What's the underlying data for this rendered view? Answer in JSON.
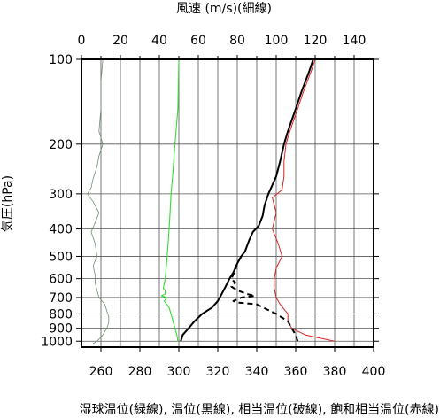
{
  "chart_data": {
    "type": "line",
    "top_axis_title": "風速 (m/s)(細線)",
    "left_axis_title": "気圧(hPa)",
    "bottom_axis_title": "湿球温位(緑線), 温位(黒線), 相当温位(破線), 飽和相当温位(赤線)",
    "wind_axis": {
      "range": [
        0,
        150
      ],
      "ticks": [
        0,
        20,
        40,
        60,
        80,
        100,
        120,
        140
      ]
    },
    "temp_axis": {
      "range": [
        250,
        400
      ],
      "ticks": [
        260,
        280,
        300,
        320,
        340,
        360,
        380,
        400
      ]
    },
    "pressure_axis": {
      "range": [
        100,
        1050
      ],
      "scale": "log",
      "reversed": true,
      "ticks": [
        100,
        200,
        300,
        400,
        500,
        600,
        700,
        800,
        900,
        1000
      ]
    },
    "grid": true,
    "colors": {
      "wind": "#6f8f6f",
      "wet_bulb": "#33dd33",
      "theta": "#000000",
      "theta_e": "#000000",
      "theta_es": "#dd2222"
    },
    "series": [
      {
        "key": "wind",
        "axis": "wind",
        "data": [
          [
            11,
            100
          ],
          [
            10,
            120
          ],
          [
            10,
            150
          ],
          [
            9,
            180
          ],
          [
            11,
            200
          ],
          [
            9,
            220
          ],
          [
            8,
            240
          ],
          [
            6,
            265
          ],
          [
            5,
            285
          ],
          [
            3,
            300
          ],
          [
            6,
            320
          ],
          [
            9,
            350
          ],
          [
            7,
            380
          ],
          [
            5,
            410
          ],
          [
            7,
            450
          ],
          [
            8,
            500
          ],
          [
            6,
            540
          ],
          [
            7,
            580
          ],
          [
            7,
            620
          ],
          [
            8,
            660
          ],
          [
            9,
            700
          ],
          [
            12,
            740
          ],
          [
            13,
            780
          ],
          [
            14,
            820
          ],
          [
            14,
            860
          ],
          [
            13,
            900
          ],
          [
            11,
            950
          ],
          [
            8,
            1000
          ],
          [
            6,
            1020
          ]
        ]
      },
      {
        "key": "wet_bulb",
        "axis": "temp",
        "data": [
          [
            300,
            100
          ],
          [
            299.5,
            150
          ],
          [
            298,
            200
          ],
          [
            297,
            250
          ],
          [
            296,
            300
          ],
          [
            295.5,
            350
          ],
          [
            295,
            400
          ],
          [
            294.5,
            450
          ],
          [
            294,
            500
          ],
          [
            293.5,
            550
          ],
          [
            293,
            600
          ],
          [
            292,
            650
          ],
          [
            293,
            660
          ],
          [
            293,
            680
          ],
          [
            291,
            690
          ],
          [
            294,
            700
          ],
          [
            292.5,
            720
          ],
          [
            295,
            760
          ],
          [
            296,
            800
          ],
          [
            297,
            850
          ],
          [
            298,
            900
          ],
          [
            299,
            950
          ],
          [
            299.5,
            1000
          ]
        ]
      },
      {
        "key": "theta",
        "axis": "temp",
        "data": [
          [
            369,
            100
          ],
          [
            367,
            110
          ],
          [
            363,
            130
          ],
          [
            360,
            150
          ],
          [
            356,
            180
          ],
          [
            354,
            200
          ],
          [
            352,
            230
          ],
          [
            350,
            260
          ],
          [
            346,
            300
          ],
          [
            344,
            330
          ],
          [
            343,
            360
          ],
          [
            341,
            390
          ],
          [
            338,
            410
          ],
          [
            336,
            440
          ],
          [
            334,
            480
          ],
          [
            332,
            500
          ],
          [
            330,
            530
          ],
          [
            328,
            570
          ],
          [
            326,
            600
          ],
          [
            324,
            640
          ],
          [
            322,
            680
          ],
          [
            320,
            720
          ],
          [
            317,
            760
          ],
          [
            312,
            800
          ],
          [
            308,
            850
          ],
          [
            305,
            900
          ],
          [
            302,
            950
          ],
          [
            301,
            1000
          ]
        ]
      },
      {
        "key": "theta_e",
        "axis": "temp",
        "data": [
          [
            332,
            500
          ],
          [
            330,
            530
          ],
          [
            329,
            560
          ],
          [
            327,
            600
          ],
          [
            329,
            620
          ],
          [
            327,
            640
          ],
          [
            330,
            660
          ],
          [
            335,
            680
          ],
          [
            339,
            690
          ],
          [
            332,
            700
          ],
          [
            328,
            720
          ],
          [
            331,
            730
          ],
          [
            340,
            740
          ],
          [
            345,
            770
          ],
          [
            350,
            800
          ],
          [
            356,
            850
          ],
          [
            358,
            900
          ],
          [
            360,
            950
          ],
          [
            361,
            1000
          ]
        ]
      },
      {
        "key": "theta_es",
        "axis": "temp",
        "data": [
          [
            370,
            100
          ],
          [
            368,
            110
          ],
          [
            364,
            130
          ],
          [
            361,
            150
          ],
          [
            357,
            180
          ],
          [
            355,
            200
          ],
          [
            354,
            230
          ],
          [
            354,
            260
          ],
          [
            353,
            290
          ],
          [
            348,
            310
          ],
          [
            350,
            350
          ],
          [
            348,
            400
          ],
          [
            351,
            450
          ],
          [
            353,
            500
          ],
          [
            350,
            550
          ],
          [
            349,
            600
          ],
          [
            349,
            650
          ],
          [
            350,
            700
          ],
          [
            352,
            740
          ],
          [
            354,
            770
          ],
          [
            356,
            800
          ],
          [
            356,
            850
          ],
          [
            358,
            900
          ],
          [
            365,
            950
          ],
          [
            380,
            1000
          ]
        ]
      }
    ]
  }
}
